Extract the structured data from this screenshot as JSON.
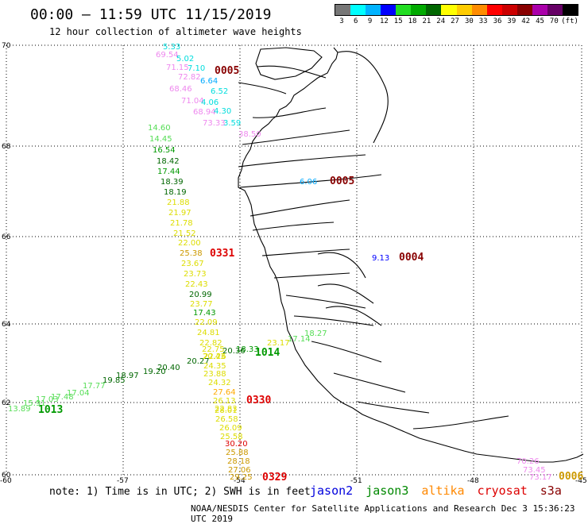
{
  "header": {
    "title": "00:00 – 11:59 UTC 11/15/2019",
    "subtitle": "12 hour collection of altimeter wave heights"
  },
  "legend": {
    "unit": "(ft)",
    "colors": [
      "#777777",
      "#00ffff",
      "#00b3ff",
      "#0000ff",
      "#22dd22",
      "#00aa00",
      "#006600",
      "#ffff00",
      "#ffcc00",
      "#ff8c00",
      "#ff0000",
      "#cc0000",
      "#880000",
      "#aa00aa",
      "#660066",
      "#000000"
    ],
    "labels": [
      "3",
      "6",
      "9",
      "12",
      "15",
      "18",
      "21",
      "24",
      "27",
      "30",
      "33",
      "36",
      "39",
      "42",
      "45",
      "70"
    ]
  },
  "axes": {
    "lat_ticks": [
      "70",
      "68",
      "66",
      "64",
      "62",
      "60"
    ],
    "lon_ticks": [
      "-60",
      "-57",
      "-54",
      "-51",
      "-48",
      "-45"
    ]
  },
  "tracks": [
    {
      "id": "0005",
      "id_color": "#880000",
      "values": [
        {
          "t": "5.33",
          "c": "#00dddd"
        },
        {
          "t": "69.54",
          "c": "#ee88ee"
        },
        {
          "t": "5.02",
          "c": "#00dddd"
        },
        {
          "t": "71.15",
          "c": "#ee88ee"
        },
        {
          "t": "7.10",
          "c": "#00dddd"
        },
        {
          "t": "72.82",
          "c": "#ee88ee"
        },
        {
          "t": "6.64",
          "c": "#00aaff"
        },
        {
          "t": "68.46",
          "c": "#ee88ee"
        },
        {
          "t": "6.52",
          "c": "#00dddd"
        },
        {
          "t": "71.04",
          "c": "#ee88ee"
        },
        {
          "t": "4.06",
          "c": "#00dddd"
        },
        {
          "t": "68.94",
          "c": "#ee88ee"
        },
        {
          "t": "4.30",
          "c": "#00dddd"
        },
        {
          "t": "73.33",
          "c": "#ee88ee"
        },
        {
          "t": "3.59",
          "c": "#00dddd"
        },
        {
          "t": "38.50",
          "c": "#ee88ee"
        }
      ]
    },
    {
      "id": "0005",
      "id_color": "#880000",
      "values": [
        {
          "t": "6.06",
          "c": "#00aaff"
        }
      ]
    },
    {
      "id": "0004",
      "id_color": "#880000",
      "values": [
        {
          "t": "9.13",
          "c": "#0000ff"
        }
      ]
    },
    {
      "id": "0331",
      "id_color": "#dd0000",
      "values": [
        {
          "t": "14.60",
          "c": "#55dd55"
        },
        {
          "t": "14.45",
          "c": "#55dd55"
        },
        {
          "t": "16.54",
          "c": "#009900"
        },
        {
          "t": "18.42",
          "c": "#006600"
        },
        {
          "t": "17.44",
          "c": "#009900"
        },
        {
          "t": "18.39",
          "c": "#006600"
        },
        {
          "t": "18.19",
          "c": "#006600"
        },
        {
          "t": "21.88",
          "c": "#dddd00"
        },
        {
          "t": "21.97",
          "c": "#dddd00"
        },
        {
          "t": "21.78",
          "c": "#dddd00"
        },
        {
          "t": "21.52",
          "c": "#dddd00"
        },
        {
          "t": "22.00",
          "c": "#dddd00"
        },
        {
          "t": "25.38",
          "c": "#cc9900"
        },
        {
          "t": "23.67",
          "c": "#dddd00"
        },
        {
          "t": "23.73",
          "c": "#dddd00"
        },
        {
          "t": "22.43",
          "c": "#dddd00"
        },
        {
          "t": "20.99",
          "c": "#006600"
        },
        {
          "t": "23.77",
          "c": "#dddd00"
        },
        {
          "t": "17.43",
          "c": "#009900"
        },
        {
          "t": "22.09",
          "c": "#dddd00"
        },
        {
          "t": "24.81",
          "c": "#dddd00"
        },
        {
          "t": "22.82",
          "c": "#dddd00"
        },
        {
          "t": "22.75",
          "c": "#dddd00"
        },
        {
          "t": "22.26",
          "c": "#dddd00"
        }
      ]
    },
    {
      "id": "1014",
      "id_color": "#009900",
      "values": [
        {
          "t": "18.27",
          "c": "#55dd55"
        },
        {
          "t": "17.14",
          "c": "#55dd55"
        },
        {
          "t": "23.17",
          "c": "#dddd00"
        },
        {
          "t": "18.33",
          "c": "#009900"
        },
        {
          "t": "20.36",
          "c": "#006600"
        },
        {
          "t": "20.43",
          "c": "#dddd00"
        },
        {
          "t": "20.27",
          "c": "#006600"
        },
        {
          "t": "20.40",
          "c": "#006600"
        },
        {
          "t": "19.20",
          "c": "#006600"
        }
      ]
    },
    {
      "id": "1013",
      "id_color": "#009900",
      "values": [
        {
          "t": "18.97",
          "c": "#006600"
        },
        {
          "t": "19.85",
          "c": "#006600"
        },
        {
          "t": "17.77",
          "c": "#55dd55"
        },
        {
          "t": "17.04",
          "c": "#55dd55"
        },
        {
          "t": "17.48",
          "c": "#55dd55"
        },
        {
          "t": "17.03",
          "c": "#55dd55"
        },
        {
          "t": "15.91",
          "c": "#55dd55"
        },
        {
          "t": "13.89",
          "c": "#55dd55"
        }
      ]
    },
    {
      "id": "0330",
      "id_color": "#dd0000",
      "values": [
        {
          "t": "24.35",
          "c": "#dddd00"
        },
        {
          "t": "23.88",
          "c": "#dddd00"
        },
        {
          "t": "24.32",
          "c": "#dddd00"
        },
        {
          "t": "27.64",
          "c": "#ffaa00"
        },
        {
          "t": "26.13",
          "c": "#dddd00"
        },
        {
          "t": "22.83",
          "c": "#dddd00"
        }
      ]
    },
    {
      "id": "0329",
      "id_color": "#dd0000",
      "values": [
        {
          "t": "28.01",
          "c": "#dddd00"
        },
        {
          "t": "26.58",
          "c": "#dddd00"
        },
        {
          "t": "26.09",
          "c": "#dddd00"
        },
        {
          "t": "25.58",
          "c": "#dddd00"
        },
        {
          "t": "30.20",
          "c": "#dd0000"
        },
        {
          "t": "25.88",
          "c": "#cc9900"
        },
        {
          "t": "28.18",
          "c": "#cc9900"
        },
        {
          "t": "27.06",
          "c": "#cc9900"
        },
        {
          "t": "29.25",
          "c": "#cc9900"
        }
      ]
    },
    {
      "id": "0006",
      "id_color": "#cc9900",
      "values": [
        {
          "t": "70.26",
          "c": "#ee88ee"
        },
        {
          "t": "73.45",
          "c": "#ee88ee"
        },
        {
          "t": "73.17",
          "c": "#ee88ee"
        }
      ]
    }
  ],
  "footer": {
    "note": "note:  1) Time is in UTC;  2) SWH is in feet",
    "satellites": [
      {
        "name": "jason2",
        "color": "#0000dd"
      },
      {
        "name": "jason3",
        "color": "#008800"
      },
      {
        "name": "altika",
        "color": "#ff8800"
      },
      {
        "name": "cryosat",
        "color": "#dd0000"
      },
      {
        "name": "s3a",
        "color": "#880000"
      }
    ],
    "credit": "NOAA/NESDIS Center for Satellite Applications and Research    Dec  3 15:36:23 UTC 2019"
  }
}
